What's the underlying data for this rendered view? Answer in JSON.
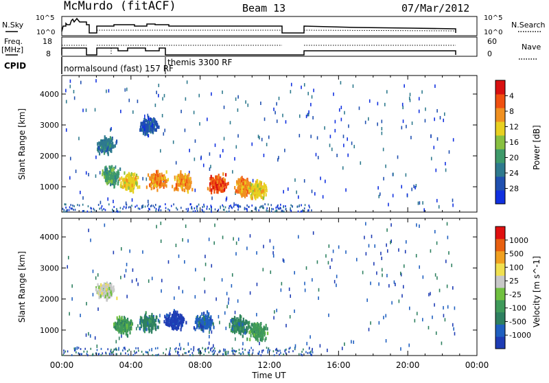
{
  "header": {
    "radar": "McMurdo (fitACF)",
    "beam": "Beam 13",
    "date": "07/Mar/2012"
  },
  "status_panels": {
    "nsky_label": "N.Sky",
    "nsearch_label": "N.Search",
    "nsky_ticks": [
      "10^5",
      "10^0"
    ],
    "nsearch_ticks": [
      "10^5",
      "10^0"
    ],
    "freq_label": "Freq.",
    "freq_unit": "[MHz]",
    "freq_ticks": [
      "18",
      "8"
    ],
    "nave_label": "Nave",
    "nave_ticks": [
      "60",
      "0"
    ],
    "cpid_label": "CPID",
    "cpid_modes": [
      "normalsound (fast) 157 RF",
      "themis 3300 RF"
    ]
  },
  "chart_data": [
    {
      "type": "heatmap",
      "title": "",
      "xlabel": "Time UT",
      "ylabel": "Slant Range [km]",
      "x_ticks": [
        "00:00",
        "04:00",
        "08:00",
        "12:00",
        "16:00",
        "20:00",
        "00:00"
      ],
      "xlim_hours": [
        0,
        24
      ],
      "y_ticks": [
        "1000",
        "2000",
        "3000",
        "4000"
      ],
      "ylim": [
        180,
        4600
      ],
      "colorbar": {
        "label": "Power [dB]",
        "ticks": [
          "4",
          "8",
          "12",
          "16",
          "20",
          "24",
          "28"
        ],
        "colors": [
          "#1030e0",
          "#2050b0",
          "#2e7a8e",
          "#3e9a6a",
          "#88c040",
          "#e8d020",
          "#f09020",
          "#f05010",
          "#d81010"
        ]
      },
      "echo_regions": [
        {
          "t": 5.0,
          "r": 3000,
          "level": 1
        },
        {
          "t": 2.5,
          "r": 2400,
          "level": 2
        },
        {
          "t": 2.8,
          "r": 1400,
          "level": 3
        },
        {
          "t": 3.9,
          "r": 1200,
          "level": 5
        },
        {
          "t": 5.5,
          "r": 1250,
          "level": 6
        },
        {
          "t": 7.0,
          "r": 1200,
          "level": 6
        },
        {
          "t": 9.0,
          "r": 1150,
          "level": 7
        },
        {
          "t": 10.5,
          "r": 1050,
          "level": 6
        },
        {
          "t": 11.3,
          "r": 950,
          "level": 5
        }
      ]
    },
    {
      "type": "heatmap",
      "title": "",
      "xlabel": "Time UT",
      "ylabel": "Slant Range [km]",
      "x_ticks": [
        "00:00",
        "04:00",
        "08:00",
        "12:00",
        "16:00",
        "20:00",
        "00:00"
      ],
      "xlim_hours": [
        0,
        24
      ],
      "y_ticks": [
        "1000",
        "2000",
        "3000",
        "4000"
      ],
      "ylim": [
        180,
        4600
      ],
      "colorbar": {
        "label": "Velocity [m s^-1]",
        "ticks": [
          "1000",
          "500",
          "100",
          "25",
          "-25",
          "-100",
          "-500",
          "-1000"
        ],
        "colors": [
          "#1e3cb4",
          "#2060c0",
          "#2e8060",
          "#3f9a5a",
          "#70c040",
          "#c8c8c8",
          "#f0e050",
          "#f0a020",
          "#e86010",
          "#e01010"
        ]
      },
      "echo_regions": [
        {
          "t": 2.5,
          "r": 2300,
          "level": 5
        },
        {
          "t": 3.5,
          "r": 1200,
          "level": 3
        },
        {
          "t": 5.0,
          "r": 1300,
          "level": 2
        },
        {
          "t": 6.5,
          "r": 1350,
          "level": 0
        },
        {
          "t": 8.2,
          "r": 1300,
          "level": 1
        },
        {
          "t": 10.2,
          "r": 1200,
          "level": 2
        },
        {
          "t": 11.3,
          "r": 1000,
          "level": 3
        }
      ]
    }
  ]
}
